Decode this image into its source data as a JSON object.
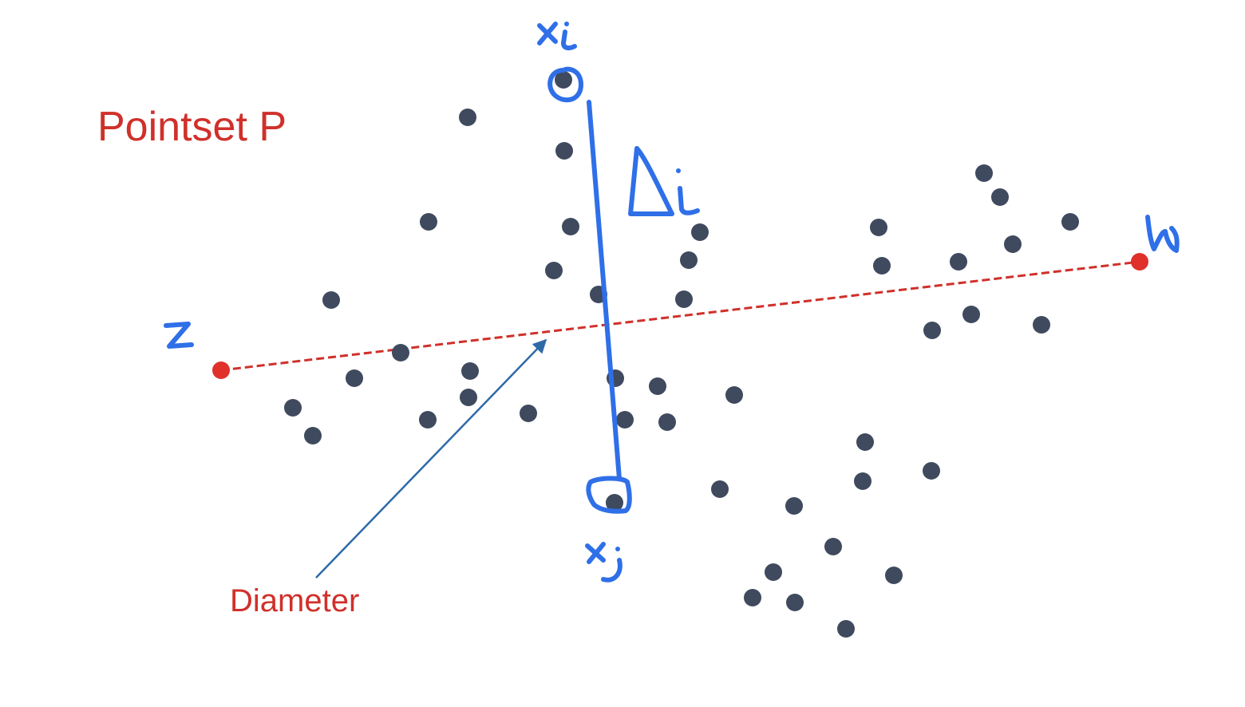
{
  "title": "Pointset P",
  "diameter_label": "Diameter",
  "handwritten": {
    "xi": "xi",
    "xj": "xj",
    "delta": "Δi",
    "z": "z",
    "w": "w"
  },
  "colors": {
    "title": "#d0302a",
    "point": "#3f4a5e",
    "endpoint": "#e0302a",
    "diameter_line": "#d0302a",
    "handwriting": "#2f6fe8",
    "arrow": "#2f6aa8"
  }
}
